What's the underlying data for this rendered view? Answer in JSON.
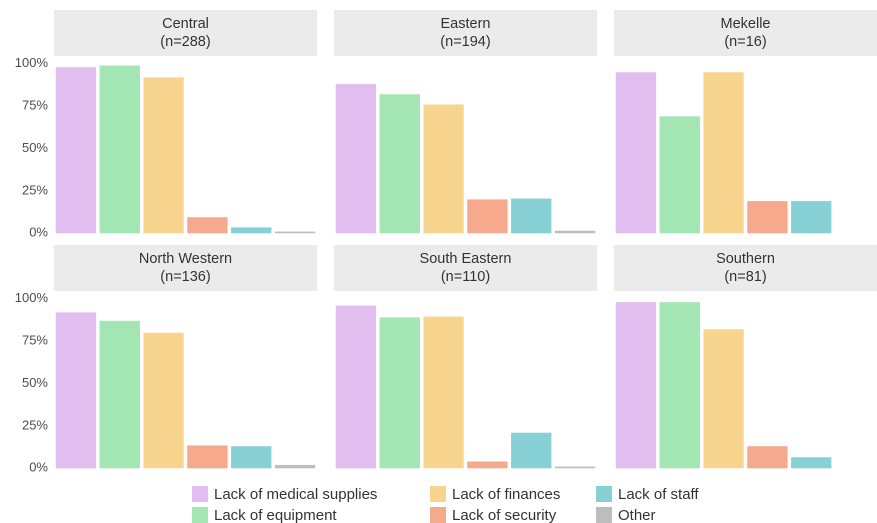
{
  "chart_data": {
    "type": "bar",
    "categories": [
      "Lack of medical supplies",
      "Lack of equipment",
      "Lack of finances",
      "Lack of security",
      "Lack of staff",
      "Other"
    ],
    "colors": [
      "#e2bdf0",
      "#a3e6b4",
      "#f8d58e",
      "#f7a98e",
      "#86d0d6",
      "#bdbdbd"
    ],
    "ylim": [
      -1,
      104
    ],
    "yticks": [
      {
        "value": 0,
        "label": "0%"
      },
      {
        "value": 25,
        "label": "25%"
      },
      {
        "value": 50,
        "label": "50%"
      },
      {
        "value": 75,
        "label": "75%"
      },
      {
        "value": 100,
        "label": "100%"
      }
    ],
    "grid": false,
    "legend": "bottom",
    "panels": [
      {
        "title": "Central",
        "subtitle": "(n=288)",
        "values": [
          98,
          99,
          92,
          9.5,
          3.5,
          1
        ]
      },
      {
        "title": "Eastern",
        "subtitle": "(n=194)",
        "values": [
          88,
          82,
          76,
          20,
          20.5,
          1.5
        ]
      },
      {
        "title": "Mekelle",
        "subtitle": "(n=16)",
        "values": [
          95,
          69,
          95,
          19,
          19,
          0
        ]
      },
      {
        "title": "North Western",
        "subtitle": "(n=136)",
        "values": [
          92,
          87,
          80,
          13.5,
          13,
          2
        ]
      },
      {
        "title": "South Eastern",
        "subtitle": "(n=110)",
        "values": [
          96,
          89,
          89.5,
          4,
          21,
          1
        ]
      },
      {
        "title": "Southern",
        "subtitle": "(n=81)",
        "values": [
          98,
          98,
          82,
          13,
          6.5,
          0
        ]
      }
    ]
  }
}
